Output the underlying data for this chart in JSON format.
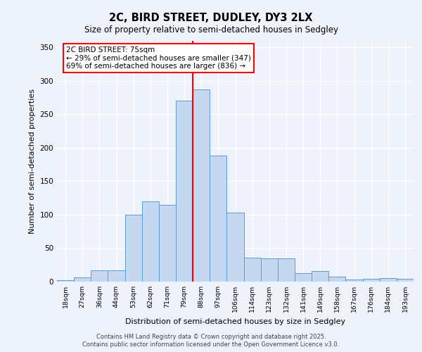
{
  "title1": "2C, BIRD STREET, DUDLEY, DY3 2LX",
  "title2": "Size of property relative to semi-detached houses in Sedgley",
  "xlabel": "Distribution of semi-detached houses by size in Sedgley",
  "ylabel": "Number of semi-detached properties",
  "categories": [
    "18sqm",
    "27sqm",
    "36sqm",
    "44sqm",
    "53sqm",
    "62sqm",
    "71sqm",
    "79sqm",
    "88sqm",
    "97sqm",
    "106sqm",
    "114sqm",
    "123sqm",
    "132sqm",
    "141sqm",
    "149sqm",
    "158sqm",
    "167sqm",
    "176sqm",
    "184sqm",
    "193sqm"
  ],
  "values": [
    2,
    6,
    17,
    17,
    100,
    120,
    115,
    270,
    287,
    188,
    103,
    36,
    35,
    35,
    13,
    16,
    7,
    3,
    4,
    5,
    4
  ],
  "bar_color": "#c5d8f0",
  "bar_edge_color": "#5b9bd5",
  "line_x_index": 7,
  "annotation_label": "2C BIRD STREET: 75sqm",
  "arrow_left": "← 29% of semi-detached houses are smaller (347)",
  "arrow_right": "69% of semi-detached houses are larger (836) →",
  "ylim": [
    0,
    360
  ],
  "yticks": [
    0,
    50,
    100,
    150,
    200,
    250,
    300,
    350
  ],
  "background_color": "#eef2fb",
  "footer1": "Contains HM Land Registry data © Crown copyright and database right 2025.",
  "footer2": "Contains public sector information licensed under the Open Government Licence v3.0."
}
